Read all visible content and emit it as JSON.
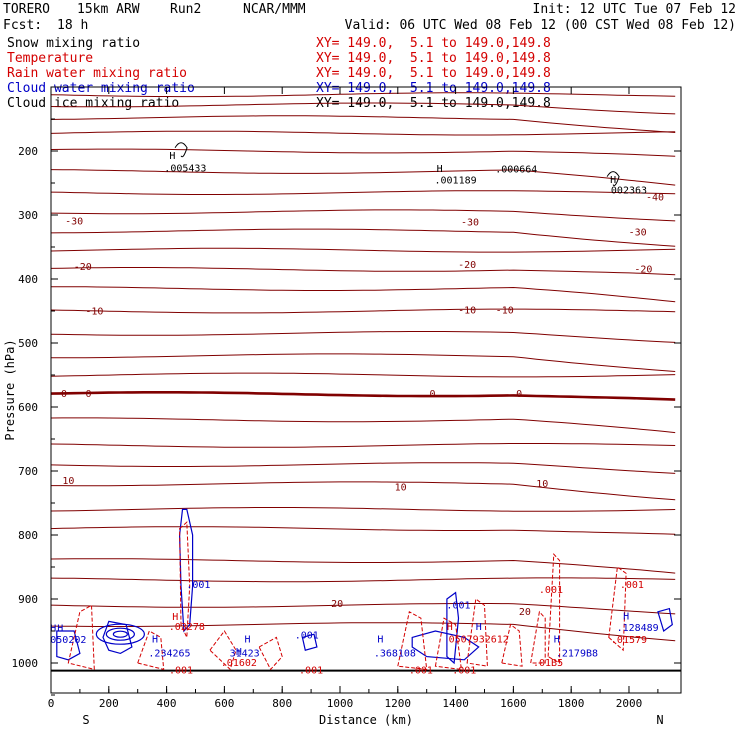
{
  "header": {
    "model": "TORERO",
    "res": "15km ARW",
    "run": "Run2",
    "org": "NCAR/MMM",
    "init": "Init: 12 UTC Tue 07 Feb 12",
    "fcst_label": "Fcst:",
    "fcst_value": "18 h",
    "valid": "Valid: 06 UTC Wed 08 Feb 12 (00 CST Wed 08 Feb 12)",
    "fields": [
      {
        "name": "Snow mixing ratio",
        "xy": "XY= 149.0,  5.1 to 149.0,149.8",
        "name_color": "#000000",
        "xy_color": "#d40000"
      },
      {
        "name": "Temperature",
        "xy": "XY= 149.0,  5.1 to 149.0,149.8",
        "name_color": "#d40000",
        "xy_color": "#d40000"
      },
      {
        "name": "Rain water mixing ratio",
        "xy": "XY= 149.0,  5.1 to 149.0,149.8",
        "name_color": "#d40000",
        "xy_color": "#d40000"
      },
      {
        "name": "Cloud water mixing ratio",
        "xy": "XY= 149.0,  5.1 to 149.0,149.8",
        "name_color": "#0000c8",
        "xy_color": "#0000c8"
      },
      {
        "name": "Cloud ice mixing ratio",
        "xy": "XY= 149.0,  5.1 to 149.0,149.8",
        "name_color": "#000000",
        "xy_color": "#000000"
      }
    ]
  },
  "chart_data": {
    "type": "contour-cross-section",
    "xlabel": "Distance (km)",
    "ylabel": "Pressure (hPa)",
    "xlim": [
      0,
      2180
    ],
    "ylim": [
      1050,
      100
    ],
    "x_ticks": [
      "0",
      "200",
      "400",
      "600",
      "800",
      "1000",
      "1200",
      "1400",
      "1600",
      "1800",
      "2000"
    ],
    "y_ticks": [
      "200",
      "300",
      "400",
      "500",
      "600",
      "700",
      "800",
      "900",
      "1000"
    ],
    "left_end_label": "S",
    "right_end_label": "N",
    "temperature_label_color": "#800000",
    "temperature_labels": [
      {
        "text": "-40",
        "x": 2090,
        "p": 273
      },
      {
        "text": "-30",
        "x": 80,
        "p": 310
      },
      {
        "text": "-30",
        "x": 1450,
        "p": 312
      },
      {
        "text": "-30",
        "x": 2030,
        "p": 327
      },
      {
        "text": "-20",
        "x": 110,
        "p": 381
      },
      {
        "text": "-20",
        "x": 1440,
        "p": 378
      },
      {
        "text": "-20",
        "x": 2050,
        "p": 385
      },
      {
        "text": "-10",
        "x": 150,
        "p": 451
      },
      {
        "text": "-10",
        "x": 1440,
        "p": 449
      },
      {
        "text": "-10",
        "x": 1570,
        "p": 449
      },
      {
        "text": "0",
        "x": 45,
        "p": 580
      },
      {
        "text": "0",
        "x": 130,
        "p": 580
      },
      {
        "text": "0",
        "x": 1320,
        "p": 580
      },
      {
        "text": "0",
        "x": 1620,
        "p": 580
      },
      {
        "text": "10",
        "x": 60,
        "p": 716
      },
      {
        "text": "10",
        "x": 1210,
        "p": 726
      },
      {
        "text": "10",
        "x": 1700,
        "p": 720
      },
      {
        "text": "20",
        "x": 990,
        "p": 908
      },
      {
        "text": "20",
        "x": 1640,
        "p": 920
      }
    ],
    "max_labels": [
      {
        "text": ".005433",
        "x": 465,
        "p": 227,
        "color": "#000000"
      },
      {
        "text": ".001189",
        "x": 1400,
        "p": 246,
        "color": "#000000"
      },
      {
        "text": ".000664",
        "x": 1610,
        "p": 229,
        "color": "#000000"
      },
      {
        "text": "002363",
        "x": 2000,
        "p": 262,
        "color": "#000000"
      },
      {
        "text": ".03278",
        "x": 470,
        "p": 944,
        "color": "#d40000"
      },
      {
        "text": ".001",
        "x": 510,
        "p": 878,
        "color": "#0000c8"
      },
      {
        "text": ".001",
        "x": 1410,
        "p": 910,
        "color": "#0000c8"
      },
      {
        "text": ".001",
        "x": 885,
        "p": 957,
        "color": "#0000c8"
      },
      {
        "text": ".001",
        "x": 1730,
        "p": 886,
        "color": "#d40000"
      },
      {
        "text": ".001",
        "x": 2010,
        "p": 878,
        "color": "#d40000"
      },
      {
        "text": "050202",
        "x": 60,
        "p": 964,
        "color": "#0000c8"
      },
      {
        "text": ".234265",
        "x": 410,
        "p": 985,
        "color": "#0000c8"
      },
      {
        "text": "31423",
        "x": 670,
        "p": 985,
        "color": "#0000c8"
      },
      {
        "text": ".01602",
        "x": 650,
        "p": 1000,
        "color": "#d40000"
      },
      {
        "text": ".368108",
        "x": 1190,
        "p": 985,
        "color": "#0000c8"
      },
      {
        "text": "0507932612",
        "x": 1480,
        "p": 963,
        "color": "#d40000"
      },
      {
        "text": ".2179B8",
        "x": 1820,
        "p": 985,
        "color": "#0000c8"
      },
      {
        "text": ".01579",
        "x": 2000,
        "p": 964,
        "color": "#d40000"
      },
      {
        "text": ".01B5",
        "x": 1720,
        "p": 1000,
        "color": "#d40000"
      },
      {
        "text": ".128489",
        "x": 2030,
        "p": 945,
        "color": "#0000c8"
      },
      {
        "text": ".001",
        "x": 450,
        "p": 1012,
        "color": "#d40000"
      },
      {
        "text": ".001",
        "x": 900,
        "p": 1012,
        "color": "#d40000"
      },
      {
        "text": ".001",
        "x": 1280,
        "p": 1012,
        "color": "#d40000"
      },
      {
        "text": ".001",
        "x": 1430,
        "p": 1012,
        "color": "#d40000"
      }
    ],
    "h_markers": [
      {
        "text": "H",
        "x": 420,
        "p": 208,
        "color": "#000000"
      },
      {
        "text": "H",
        "x": 1345,
        "p": 228,
        "color": "#000000"
      },
      {
        "text": "H",
        "x": 1945,
        "p": 245,
        "color": "#000000"
      },
      {
        "text": "H",
        "x": 8,
        "p": 946,
        "color": "#0000c8"
      },
      {
        "text": "H",
        "x": 32,
        "p": 946,
        "color": "#0000c8"
      },
      {
        "text": "H",
        "x": 430,
        "p": 928,
        "color": "#d40000"
      },
      {
        "text": "H",
        "x": 360,
        "p": 963,
        "color": "#0000c8"
      },
      {
        "text": "H",
        "x": 650,
        "p": 983,
        "color": "#0000c8"
      },
      {
        "text": "H",
        "x": 680,
        "p": 963,
        "color": "#0000c8"
      },
      {
        "text": "H",
        "x": 1140,
        "p": 963,
        "color": "#0000c8"
      },
      {
        "text": "H",
        "x": 1380,
        "p": 944,
        "color": "#d40000"
      },
      {
        "text": "H",
        "x": 1480,
        "p": 944,
        "color": "#0000c8"
      },
      {
        "text": "H",
        "x": 1750,
        "p": 963,
        "color": "#0000c8"
      },
      {
        "text": "H",
        "x": 1990,
        "p": 927,
        "color": "#0000c8"
      }
    ],
    "terrain_p": 1012
  }
}
